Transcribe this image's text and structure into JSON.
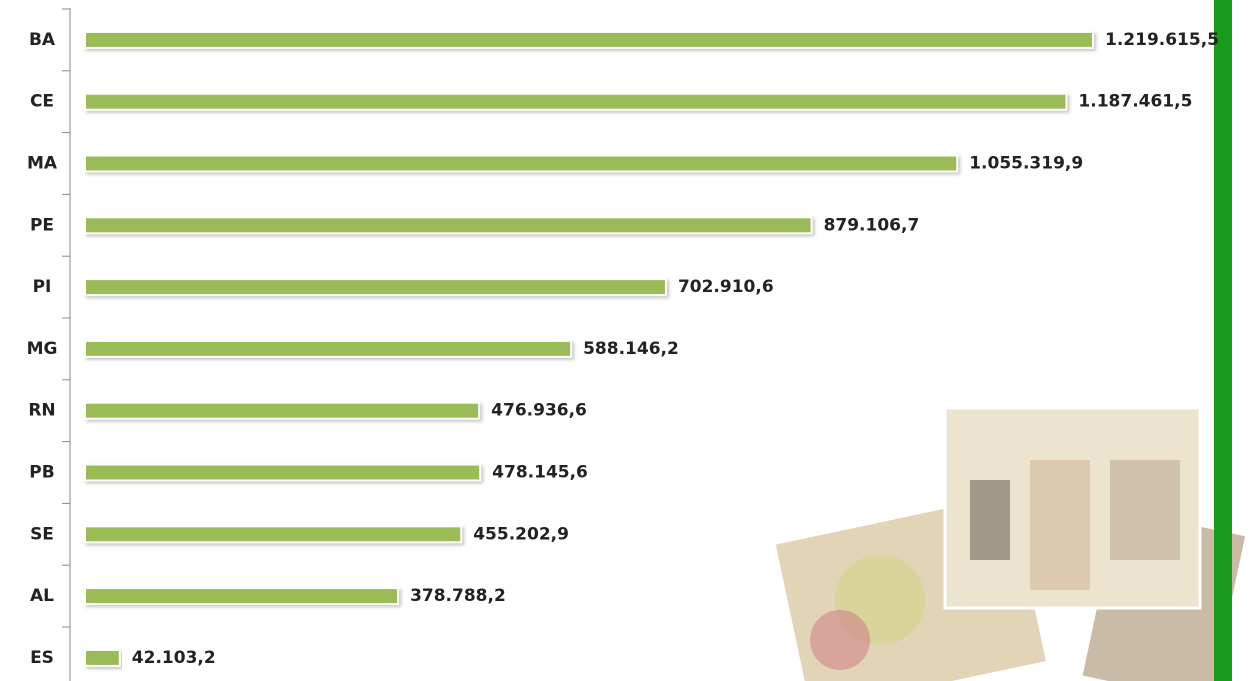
{
  "chart_data": {
    "type": "bar",
    "orientation": "horizontal",
    "categories": [
      "BA",
      "CE",
      "MA",
      "PE",
      "PI",
      "MG",
      "RN",
      "PB",
      "SE",
      "AL",
      "ES"
    ],
    "values": [
      1219615.5,
      1187461.5,
      1055319.9,
      879106.7,
      702910.6,
      588146.2,
      476936.6,
      478145.6,
      455202.9,
      378788.2,
      42103.2
    ],
    "value_labels": [
      "1.219.615,5",
      "1.187.461,5",
      "1.055.319,9",
      "879.106,7",
      "702.910,6",
      "588.146,2",
      "476.936,6",
      "478.145,6",
      "455.202,9",
      "378.788,2",
      "42.103,2"
    ],
    "color": "#9bbb59"
  }
}
